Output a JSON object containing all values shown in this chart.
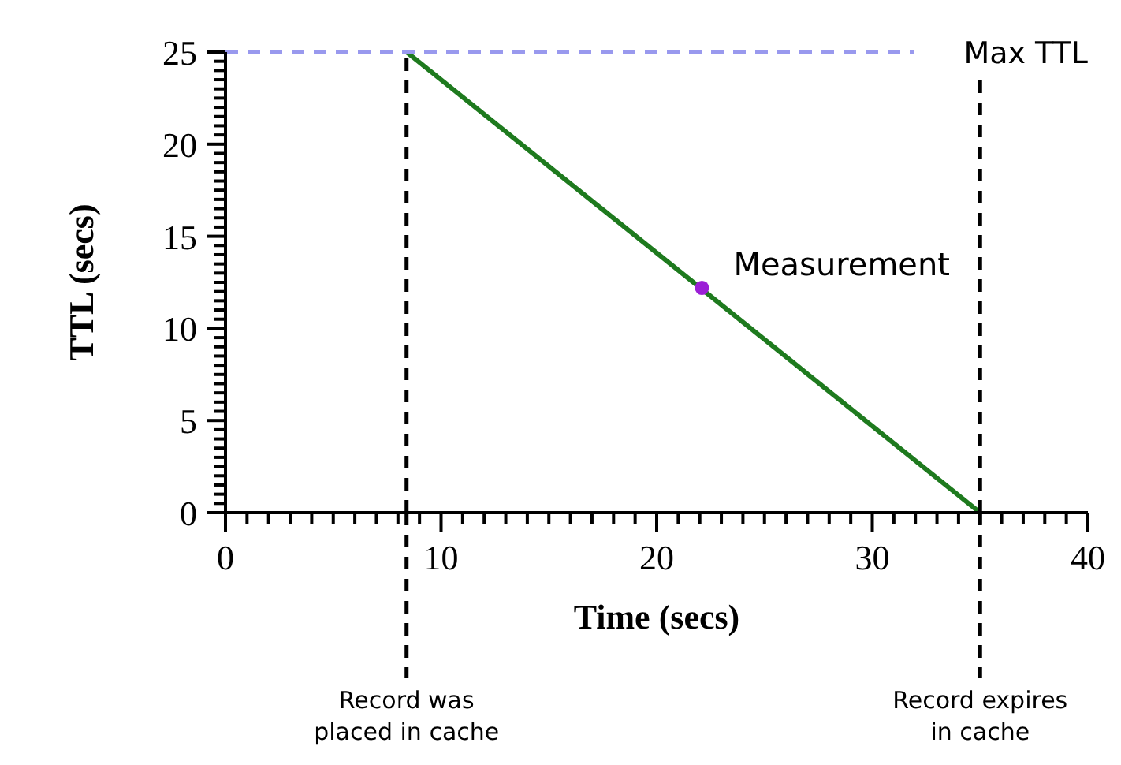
{
  "chart_data": {
    "type": "line",
    "xlabel": "Time (secs)",
    "ylabel": "TTL (secs)",
    "xlim": [
      0,
      40
    ],
    "ylim": [
      0,
      25
    ],
    "xticks": [
      0,
      {
        "value": 1,
        "label": null
      },
      {
        "value": 2,
        "label": null
      },
      {
        "value": 3,
        "label": null
      },
      {
        "value": 4,
        "label": null
      },
      {
        "value": 5,
        "label": null
      },
      {
        "value": 6,
        "label": null
      },
      {
        "value": 7,
        "label": null
      },
      {
        "value": 8,
        "label": null
      },
      {
        "value": 9,
        "label": null
      },
      10,
      {
        "value": 11,
        "label": null
      },
      {
        "value": 12,
        "label": null
      },
      {
        "value": 13,
        "label": null
      },
      {
        "value": 14,
        "label": null
      },
      {
        "value": 15,
        "label": null
      },
      {
        "value": 16,
        "label": null
      },
      {
        "value": 17,
        "label": null
      },
      {
        "value": 18,
        "label": null
      },
      {
        "value": 19,
        "label": null
      },
      20,
      {
        "value": 21,
        "label": null
      },
      {
        "value": 22,
        "label": null
      },
      {
        "value": 23,
        "label": null
      },
      {
        "value": 24,
        "label": null
      },
      {
        "value": 25,
        "label": null
      },
      {
        "value": 26,
        "label": null
      },
      {
        "value": 27,
        "label": null
      },
      {
        "value": 28,
        "label": null
      },
      {
        "value": 29,
        "label": null
      },
      30,
      {
        "value": 31,
        "label": null
      },
      {
        "value": 32,
        "label": null
      },
      {
        "value": 33,
        "label": null
      },
      {
        "value": 34,
        "label": null
      },
      {
        "value": 35,
        "label": null
      },
      {
        "value": 36,
        "label": null
      },
      {
        "value": 37,
        "label": null
      },
      {
        "value": 38,
        "label": null
      },
      {
        "value": 39,
        "label": null
      },
      40
    ],
    "yticks": [
      0,
      {
        "value": 0.5,
        "label": null
      },
      {
        "value": 1,
        "label": null
      },
      {
        "value": 1.5,
        "label": null
      },
      {
        "value": 2,
        "label": null
      },
      {
        "value": 2.5,
        "label": null
      },
      {
        "value": 3,
        "label": null
      },
      {
        "value": 3.5,
        "label": null
      },
      {
        "value": 4,
        "label": null
      },
      {
        "value": 4.5,
        "label": null
      },
      5,
      {
        "value": 5.5,
        "label": null
      },
      {
        "value": 6,
        "label": null
      },
      {
        "value": 6.5,
        "label": null
      },
      {
        "value": 7,
        "label": null
      },
      {
        "value": 7.5,
        "label": null
      },
      {
        "value": 8,
        "label": null
      },
      {
        "value": 8.5,
        "label": null
      },
      {
        "value": 9,
        "label": null
      },
      {
        "value": 9.5,
        "label": null
      },
      10,
      {
        "value": 10.5,
        "label": null
      },
      {
        "value": 11,
        "label": null
      },
      {
        "value": 11.5,
        "label": null
      },
      {
        "value": 12,
        "label": null
      },
      {
        "value": 12.5,
        "label": null
      },
      {
        "value": 13,
        "label": null
      },
      {
        "value": 13.5,
        "label": null
      },
      {
        "value": 14,
        "label": null
      },
      {
        "value": 14.5,
        "label": null
      },
      15,
      {
        "value": 15.5,
        "label": null
      },
      {
        "value": 16,
        "label": null
      },
      {
        "value": 16.5,
        "label": null
      },
      {
        "value": 17,
        "label": null
      },
      {
        "value": 17.5,
        "label": null
      },
      {
        "value": 18,
        "label": null
      },
      {
        "value": 18.5,
        "label": null
      },
      {
        "value": 19,
        "label": null
      },
      {
        "value": 19.5,
        "label": null
      },
      20,
      {
        "value": 20.5,
        "label": null
      },
      {
        "value": 21,
        "label": null
      },
      {
        "value": 21.5,
        "label": null
      },
      {
        "value": 22,
        "label": null
      },
      {
        "value": 22.5,
        "label": null
      },
      {
        "value": 23,
        "label": null
      },
      {
        "value": 23.5,
        "label": null
      },
      {
        "value": 24,
        "label": null
      },
      {
        "value": 24.5,
        "label": null
      },
      25
    ],
    "series": [
      {
        "x": [
          8.4,
          35
        ],
        "values": [
          25,
          0
        ],
        "color": "#1e7a1e",
        "marker": "none",
        "line_style": "solid"
      },
      {
        "type": "scatter",
        "x": [
          22.1
        ],
        "values": [
          12.2
        ],
        "color": "#9b1fd6",
        "marker": "circle"
      }
    ],
    "ref_lines": [
      {
        "axis": "y",
        "value": 25,
        "label": "Max TTL",
        "color": "#9999ee",
        "line_style": "dashed"
      },
      {
        "axis": "x",
        "value": 8.4,
        "label": "Record was placed in cache",
        "color": "#000000",
        "line_style": "dashed"
      },
      {
        "axis": "x",
        "value": 35,
        "label": "Record expires in cache",
        "color": "#000000",
        "line_style": "dashed"
      }
    ],
    "annotations": [
      {
        "text": "Measurement",
        "x": 22.1,
        "y": 12.2
      }
    ],
    "grid": false
  }
}
